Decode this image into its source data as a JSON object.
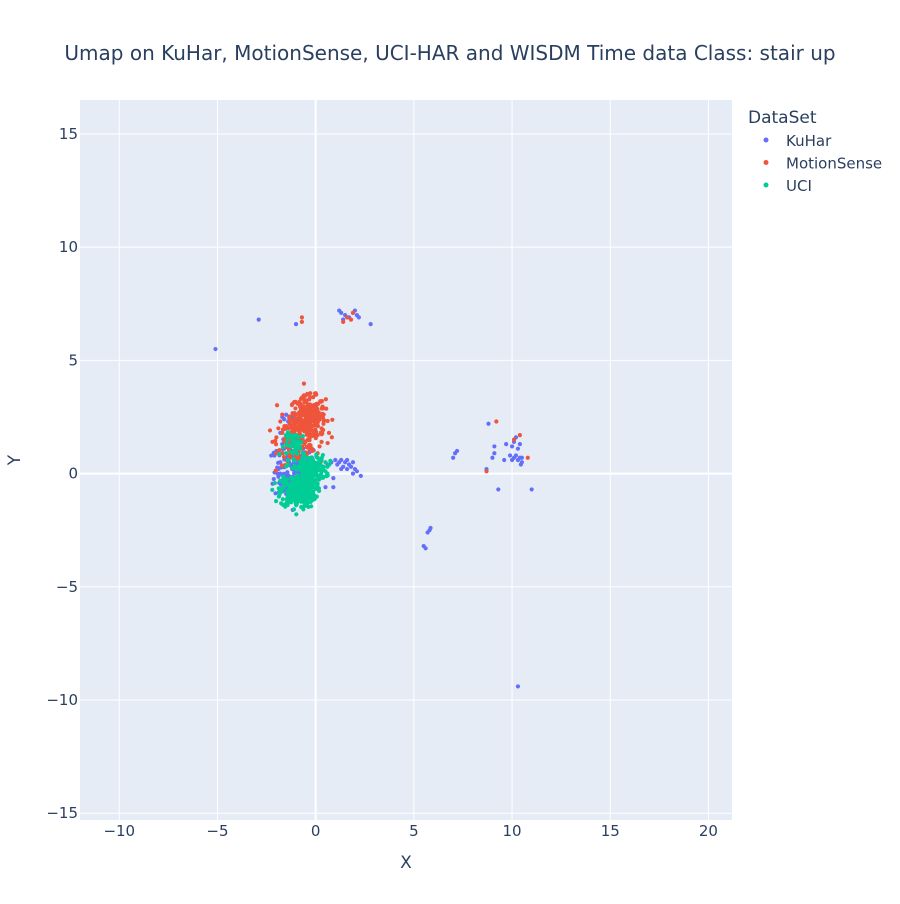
{
  "chart_data": {
    "type": "scatter",
    "title": "Umap on KuHar, MotionSense, UCI-HAR and WISDM   Time data   Class: stair up",
    "xlabel": "X",
    "ylabel": "Y",
    "xlim": [
      -12,
      21.2
    ],
    "ylim": [
      -15.3,
      16.5
    ],
    "xticks": [
      -10,
      -5,
      0,
      5,
      10,
      15,
      20
    ],
    "yticks": [
      -15,
      -10,
      -5,
      0,
      5,
      10,
      15
    ],
    "xtick_labels": [
      "−10",
      "−5",
      "0",
      "5",
      "10",
      "15",
      "20"
    ],
    "ytick_labels": [
      "−15",
      "−10",
      "−5",
      "0",
      "5",
      "10",
      "15"
    ],
    "grid": true,
    "legend_title": "DataSet",
    "legend_position": "right",
    "background": "#e5ecf6",
    "series": [
      {
        "name": "KuHar",
        "color": "#636efa",
        "points": [
          [
            -5.1,
            5.5
          ],
          [
            -2.9,
            6.8
          ],
          [
            -1.0,
            6.6
          ],
          [
            1.2,
            7.2
          ],
          [
            1.3,
            7.1
          ],
          [
            1.5,
            7.0
          ],
          [
            1.7,
            6.9
          ],
          [
            1.9,
            7.1
          ],
          [
            2.1,
            7.0
          ],
          [
            2.2,
            6.9
          ],
          [
            1.4,
            6.8
          ],
          [
            2.0,
            7.2
          ],
          [
            2.8,
            6.6
          ],
          [
            -1.9,
            0.9
          ],
          [
            -2.0,
            1.0
          ],
          [
            -1.8,
            0.5
          ],
          [
            -1.6,
            2.4
          ],
          [
            -1.7,
            2.5
          ],
          [
            -1.5,
            2.6
          ],
          [
            -1.4,
            2.3
          ],
          [
            -1.2,
            2.5
          ],
          [
            -1.0,
            2.4
          ],
          [
            -1.8,
            0.0
          ],
          [
            -1.7,
            -0.3
          ],
          [
            -1.6,
            -0.6
          ],
          [
            -1.5,
            -0.9
          ],
          [
            -1.6,
            0.3
          ],
          [
            -1.4,
            0.7
          ],
          [
            -1.3,
            1.0
          ],
          [
            -1.7,
            1.3
          ],
          [
            -1.5,
            1.6
          ],
          [
            -1.8,
            1.8
          ],
          [
            -1.2,
            -1.0
          ],
          [
            -1.1,
            -0.6
          ],
          [
            -0.9,
            -0.9
          ],
          [
            -0.7,
            -0.7
          ],
          [
            -0.5,
            -1.1
          ],
          [
            -0.3,
            -0.8
          ],
          [
            -0.6,
            -0.4
          ],
          [
            -0.8,
            -0.2
          ],
          [
            -1.0,
            -0.3
          ],
          [
            -1.4,
            -0.2
          ],
          [
            -1.2,
            0.2
          ],
          [
            -1.9,
            0.2
          ],
          [
            -2.1,
            0.8
          ],
          [
            -1.6,
            1.1
          ],
          [
            0.6,
            0.4
          ],
          [
            0.8,
            0.5
          ],
          [
            1.0,
            0.6
          ],
          [
            1.1,
            0.4
          ],
          [
            1.2,
            0.5
          ],
          [
            1.3,
            0.6
          ],
          [
            1.4,
            0.3
          ],
          [
            1.5,
            0.5
          ],
          [
            1.6,
            0.6
          ],
          [
            1.7,
            0.4
          ],
          [
            1.8,
            0.3
          ],
          [
            1.9,
            0.5
          ],
          [
            2.0,
            0.2
          ],
          [
            2.1,
            0.1
          ],
          [
            2.3,
            -0.1
          ],
          [
            1.3,
            0.2
          ],
          [
            1.6,
            0.2
          ],
          [
            1.9,
            0.0
          ],
          [
            0.5,
            -0.6
          ],
          [
            0.9,
            -0.6
          ],
          [
            0.9,
            -0.2
          ],
          [
            5.5,
            -3.2
          ],
          [
            5.6,
            -3.3
          ],
          [
            5.7,
            -2.6
          ],
          [
            5.8,
            -2.5
          ],
          [
            5.85,
            -2.4
          ],
          [
            7.0,
            0.7
          ],
          [
            7.1,
            0.9
          ],
          [
            7.2,
            1.0
          ],
          [
            8.7,
            0.2
          ],
          [
            8.8,
            2.2
          ],
          [
            9.0,
            0.7
          ],
          [
            9.1,
            0.9
          ],
          [
            9.1,
            1.2
          ],
          [
            9.3,
            -0.7
          ],
          [
            9.6,
            0.6
          ],
          [
            9.7,
            1.3
          ],
          [
            9.9,
            0.8
          ],
          [
            10.0,
            0.6
          ],
          [
            10.0,
            1.2
          ],
          [
            10.1,
            0.7
          ],
          [
            10.1,
            1.4
          ],
          [
            10.2,
            0.8
          ],
          [
            10.2,
            1.6
          ],
          [
            10.3,
            0.6
          ],
          [
            10.3,
            1.1
          ],
          [
            10.4,
            0.7
          ],
          [
            10.4,
            1.3
          ],
          [
            10.45,
            0.4
          ],
          [
            10.5,
            0.5
          ],
          [
            10.5,
            0.7
          ],
          [
            11.0,
            -0.7
          ],
          [
            10.3,
            -9.4
          ]
        ]
      },
      {
        "name": "MotionSense",
        "color": "#ef553b",
        "points": [
          [
            -0.7,
            6.9
          ],
          [
            -0.7,
            6.7
          ],
          [
            1.4,
            6.7
          ],
          [
            1.6,
            6.9
          ],
          [
            1.8,
            6.8
          ],
          [
            1.9,
            7.1
          ],
          [
            -2.2,
            1.4
          ],
          [
            -2.0,
            1.6
          ],
          [
            -1.9,
            2.0
          ],
          [
            -1.8,
            2.3
          ],
          [
            -1.7,
            1.8
          ],
          [
            -1.6,
            1.4
          ],
          [
            -1.5,
            2.1
          ],
          [
            -1.4,
            1.7
          ],
          [
            0.2,
            1.2
          ],
          [
            0.3,
            1.4
          ],
          [
            0.1,
            0.9
          ],
          [
            0.3,
            2.0
          ],
          [
            0.1,
            1.7
          ],
          [
            -0.2,
            1.0
          ],
          [
            -0.1,
            1.9
          ],
          [
            0.4,
            2.2
          ],
          [
            8.7,
            0.1
          ],
          [
            9.2,
            2.3
          ],
          [
            10.1,
            1.5
          ],
          [
            10.4,
            1.7
          ],
          [
            10.8,
            0.7
          ]
        ]
      },
      {
        "name": "UCI",
        "color": "#00cc96",
        "points": [
          [
            -1.6,
            -0.2
          ],
          [
            -1.4,
            0.4
          ],
          [
            -1.3,
            1.2
          ],
          [
            -1.2,
            1.5
          ],
          [
            -1.1,
            1.0
          ],
          [
            -1.0,
            1.7
          ],
          [
            -0.9,
            1.4
          ],
          [
            -1.5,
            0.9
          ],
          [
            -0.8,
            1.1
          ],
          [
            0.1,
            0.2
          ],
          [
            0.2,
            0.4
          ],
          [
            0.3,
            0.1
          ],
          [
            0.4,
            0.3
          ],
          [
            0.5,
            0.5
          ],
          [
            0.6,
            0.3
          ],
          [
            0.7,
            0.4
          ],
          [
            0.5,
            0.1
          ],
          [
            0.3,
            0.6
          ],
          [
            0.6,
            0.0
          ]
        ]
      }
    ],
    "clusters": [
      {
        "series": "MotionSense",
        "cx": -0.4,
        "cy": 2.5,
        "sx": 0.45,
        "sy": 0.45,
        "n": 260
      },
      {
        "series": "MotionSense",
        "cx": -0.9,
        "cy": 1.4,
        "sx": 0.5,
        "sy": 0.5,
        "n": 130
      },
      {
        "series": "KuHar",
        "cx": -1.0,
        "cy": 0.1,
        "sx": 0.55,
        "sy": 0.65,
        "n": 160
      },
      {
        "series": "UCI",
        "cx": -0.9,
        "cy": -0.8,
        "sx": 0.45,
        "sy": 0.35,
        "n": 300
      },
      {
        "series": "UCI",
        "cx": -0.3,
        "cy": 0.2,
        "sx": 0.4,
        "sy": 0.3,
        "n": 180
      },
      {
        "series": "UCI",
        "cx": -1.0,
        "cy": 1.3,
        "sx": 0.3,
        "sy": 0.25,
        "n": 40
      }
    ]
  }
}
